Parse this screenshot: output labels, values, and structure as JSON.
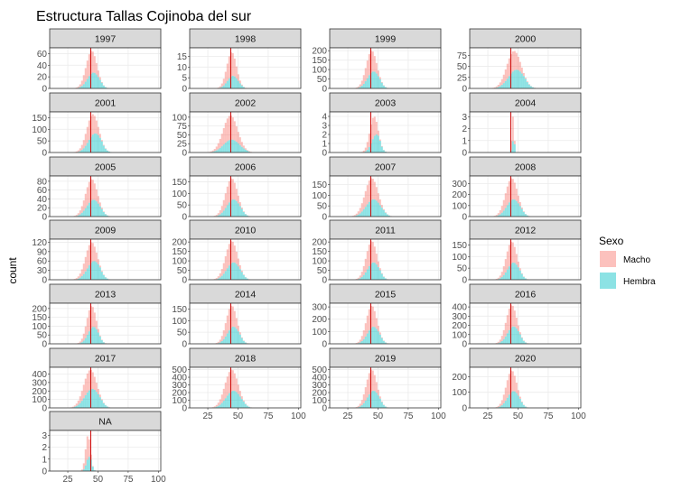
{
  "chart_data": {
    "type": "histogram",
    "title": "Estructura Tallas Cojinoba del sur",
    "ylabel": "count",
    "xlabel": "",
    "x_ticks": [
      25,
      50,
      75,
      100
    ],
    "xlim": [
      10,
      102
    ],
    "grid": "on",
    "facet_variable": "year",
    "reference_line_x": 44,
    "reference_line_color": "#cc0000",
    "legend": {
      "title": "Sexo",
      "position": "right",
      "entries": [
        {
          "label": "Macho",
          "color": "#F8766D"
        },
        {
          "label": "Hembra",
          "color": "#00BFC4"
        }
      ]
    },
    "series_colors": {
      "macho": "#F8766D",
      "hembra": "#00BFC4"
    },
    "panels": [
      {
        "label": "1997",
        "ymax": 70,
        "yticks": [
          0,
          20,
          40,
          60
        ],
        "center": 44,
        "sd": 4.5,
        "peak": 65,
        "female_frac": 0.42,
        "female_shift": 1.5
      },
      {
        "label": "1998",
        "ymax": 19,
        "yticks": [
          0,
          5,
          10,
          15
        ],
        "center": 44,
        "sd": 4.0,
        "peak": 17,
        "female_frac": 0.35,
        "female_shift": 1.0
      },
      {
        "label": "1999",
        "ymax": 215,
        "yticks": [
          0,
          50,
          100,
          150,
          200
        ],
        "center": 44,
        "sd": 4.5,
        "peak": 200,
        "female_frac": 0.45,
        "female_shift": 1.5
      },
      {
        "label": "2000",
        "ymax": 92,
        "yticks": [
          0,
          25,
          50,
          75
        ],
        "center": 46,
        "sd": 6.0,
        "peak": 85,
        "female_frac": 0.5,
        "female_shift": 2.0
      },
      {
        "label": "2001",
        "ymax": 175,
        "yticks": [
          0,
          50,
          100,
          150
        ],
        "center": 45,
        "sd": 5.0,
        "peak": 165,
        "female_frac": 0.5,
        "female_shift": 2.0
      },
      {
        "label": "2002",
        "ymax": 115,
        "yticks": [
          0,
          25,
          50,
          75,
          100
        ],
        "center": 43,
        "sd": 6.0,
        "peak": 105,
        "female_frac": 0.35,
        "female_shift": 1.0
      },
      {
        "label": "2003",
        "ymax": 4.5,
        "yticks": [
          0,
          1,
          2,
          3,
          4
        ],
        "center": 46,
        "sd": 3.5,
        "peak": 4,
        "female_frac": 0.5,
        "female_shift": 2.0
      },
      {
        "label": "2004",
        "ymax": 3.4,
        "yticks": [
          0,
          1,
          2,
          3
        ],
        "center": 45,
        "sd": 1.0,
        "peak": 3,
        "female_frac": 0.35,
        "female_shift": 0.5
      },
      {
        "label": "2005",
        "ymax": 92,
        "yticks": [
          0,
          20,
          40,
          60,
          80
        ],
        "center": 44,
        "sd": 5.0,
        "peak": 85,
        "female_frac": 0.45,
        "female_shift": 1.5
      },
      {
        "label": "2006",
        "ymax": 175,
        "yticks": [
          0,
          50,
          100,
          150
        ],
        "center": 44,
        "sd": 5.0,
        "peak": 165,
        "female_frac": 0.45,
        "female_shift": 1.5
      },
      {
        "label": "2007",
        "ymax": 190,
        "yticks": [
          0,
          50,
          100,
          150
        ],
        "center": 44,
        "sd": 5.5,
        "peak": 180,
        "female_frac": 0.45,
        "female_shift": 1.5
      },
      {
        "label": "2008",
        "ymax": 370,
        "yticks": [
          0,
          100,
          200,
          300
        ],
        "center": 44,
        "sd": 5.0,
        "peak": 350,
        "female_frac": 0.45,
        "female_shift": 1.5
      },
      {
        "label": "2009",
        "ymax": 130,
        "yticks": [
          0,
          30,
          60,
          90,
          120
        ],
        "center": 44,
        "sd": 5.0,
        "peak": 120,
        "female_frac": 0.5,
        "female_shift": 2.0
      },
      {
        "label": "2010",
        "ymax": 215,
        "yticks": [
          0,
          50,
          100,
          150,
          200
        ],
        "center": 44,
        "sd": 5.0,
        "peak": 205,
        "female_frac": 0.45,
        "female_shift": 1.5
      },
      {
        "label": "2011",
        "ymax": 215,
        "yticks": [
          0,
          50,
          100,
          150,
          200
        ],
        "center": 44,
        "sd": 4.5,
        "peak": 205,
        "female_frac": 0.45,
        "female_shift": 1.5
      },
      {
        "label": "2012",
        "ymax": 175,
        "yticks": [
          0,
          50,
          100,
          150
        ],
        "center": 44,
        "sd": 4.5,
        "peak": 165,
        "female_frac": 0.45,
        "female_shift": 1.5
      },
      {
        "label": "2013",
        "ymax": 230,
        "yticks": [
          0,
          50,
          100,
          150,
          200
        ],
        "center": 44,
        "sd": 4.0,
        "peak": 215,
        "female_frac": 0.45,
        "female_shift": 1.5
      },
      {
        "label": "2014",
        "ymax": 175,
        "yticks": [
          0,
          50,
          100,
          150
        ],
        "center": 44,
        "sd": 4.5,
        "peak": 165,
        "female_frac": 0.45,
        "female_shift": 1.5
      },
      {
        "label": "2015",
        "ymax": 330,
        "yticks": [
          0,
          100,
          200,
          300
        ],
        "center": 44,
        "sd": 4.5,
        "peak": 310,
        "female_frac": 0.45,
        "female_shift": 1.5
      },
      {
        "label": "2016",
        "ymax": 440,
        "yticks": [
          0,
          100,
          200,
          300,
          400
        ],
        "center": 44,
        "sd": 4.5,
        "peak": 420,
        "female_frac": 0.45,
        "female_shift": 1.5
      },
      {
        "label": "2017",
        "ymax": 480,
        "yticks": [
          0,
          100,
          200,
          300,
          400
        ],
        "center": 43,
        "sd": 5.5,
        "peak": 450,
        "female_frac": 0.5,
        "female_shift": 1.5
      },
      {
        "label": "2018",
        "ymax": 530,
        "yticks": [
          0,
          100,
          200,
          300,
          400,
          500
        ],
        "center": 44,
        "sd": 5.5,
        "peak": 500,
        "female_frac": 0.45,
        "female_shift": 1.5
      },
      {
        "label": "2019",
        "ymax": 530,
        "yticks": [
          0,
          100,
          200,
          300,
          400,
          500
        ],
        "center": 44,
        "sd": 4.5,
        "peak": 500,
        "female_frac": 0.45,
        "female_shift": 1.5
      },
      {
        "label": "2020",
        "ymax": 260,
        "yticks": [
          0,
          100,
          200
        ],
        "center": 44,
        "sd": 4.5,
        "peak": 240,
        "female_frac": 0.45,
        "female_shift": 1.5
      },
      {
        "label": "NA",
        "ymax": 3.4,
        "yticks": [
          0,
          1,
          2,
          3
        ],
        "center": 41,
        "sd": 2.0,
        "peak": 3,
        "female_frac": 0.4,
        "female_shift": 1.0
      }
    ]
  }
}
